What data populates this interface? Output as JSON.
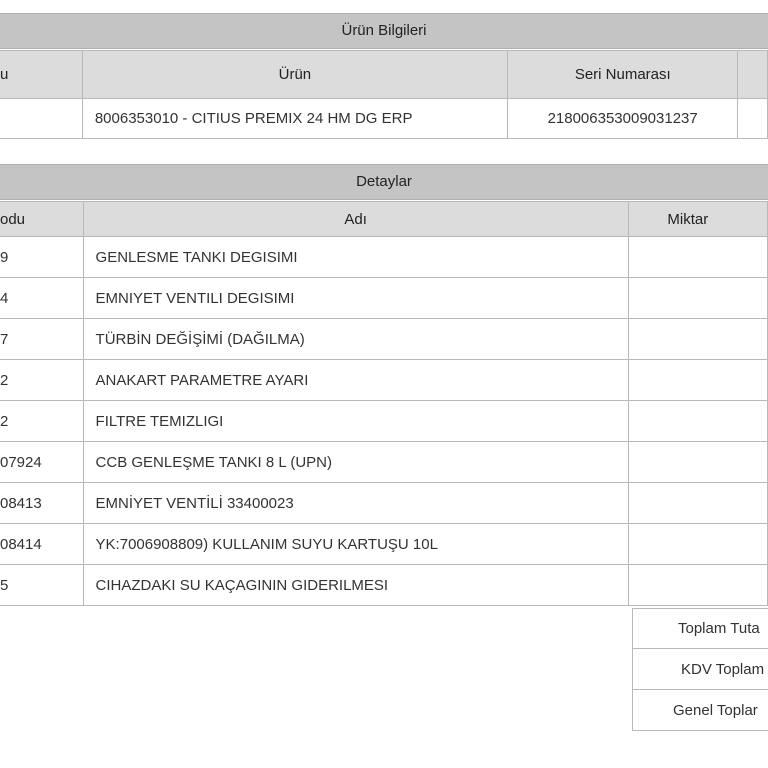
{
  "product_info": {
    "title": "Ürün Bilgileri",
    "columns": [
      "u",
      "Ürün",
      "Seri Numarası",
      ""
    ],
    "row": {
      "code": "",
      "product": "8006353010 - CITIUS PREMIX 24 HM DG ERP",
      "serial": "218006353009031237",
      "extra": ""
    }
  },
  "details": {
    "title": "Detaylar",
    "columns": [
      "odu",
      "Adı",
      "Miktar"
    ],
    "rows": [
      {
        "code": "9",
        "name": "GENLESME TANKI DEGISIMI",
        "qty": ""
      },
      {
        "code": "4",
        "name": "EMNIYET VENTILI DEGISIMI",
        "qty": ""
      },
      {
        "code": "7",
        "name": "TÜRBİN DEĞİŞİMİ (DAĞILMA)",
        "qty": ""
      },
      {
        "code": "2",
        "name": "ANAKART PARAMETRE AYARI",
        "qty": ""
      },
      {
        "code": "2",
        "name": "FILTRE TEMIZLIGI",
        "qty": ""
      },
      {
        "code": "07924",
        "name": "CCB GENLEŞME TANKI 8 L (UPN)",
        "qty": ""
      },
      {
        "code": "08413",
        "name": "EMNİYET VENTİLİ 33400023",
        "qty": ""
      },
      {
        "code": "08414",
        "name": "YK:7006908809) KULLANIM SUYU KARTUŞU 10L",
        "qty": ""
      },
      {
        "code": "5",
        "name": "CIHAZDAKI SU KAÇAGININ GIDERILMESI",
        "qty": ""
      }
    ]
  },
  "totals": [
    "Toplam Tuta",
    "KDV Toplam",
    "Genel Toplar"
  ]
}
